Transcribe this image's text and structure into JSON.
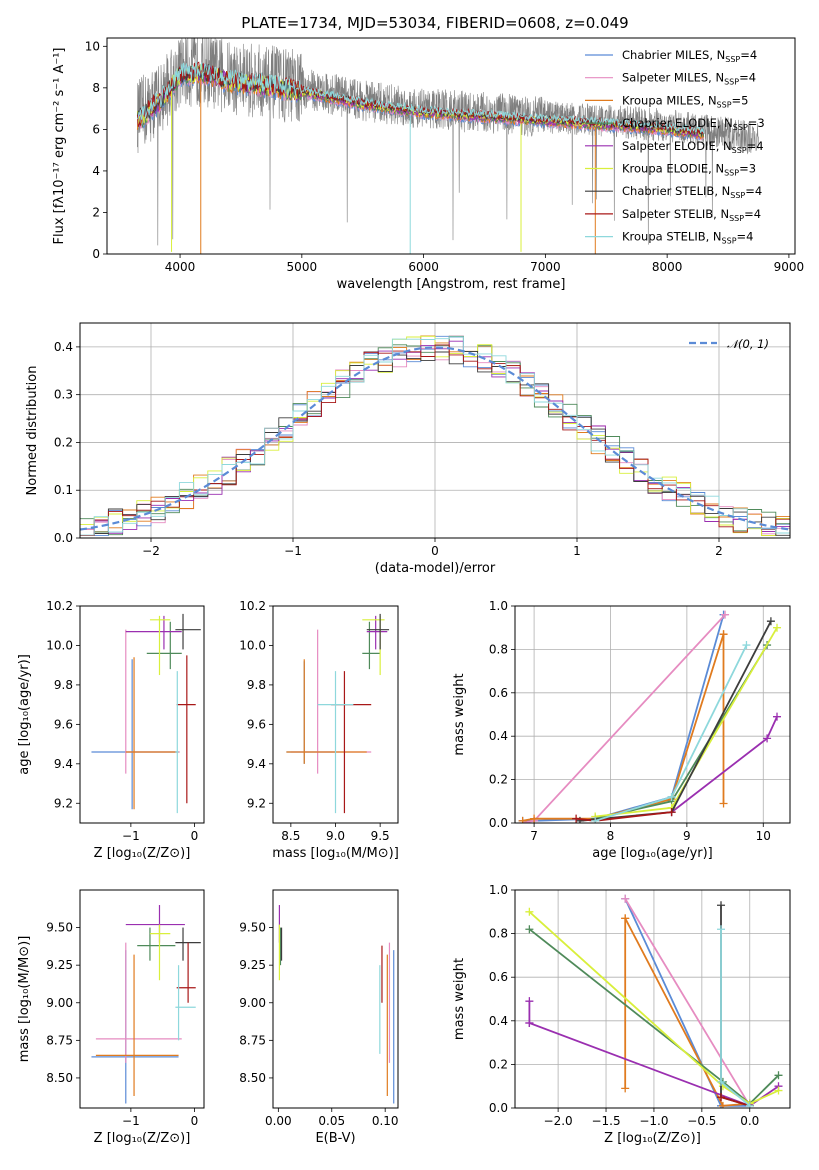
{
  "series_styles": [
    {
      "name": "Chabrier MILES",
      "nssp": "4",
      "color": "#5b8bd6"
    },
    {
      "name": "Salpeter MILES",
      "nssp": "4",
      "color": "#e68cc1"
    },
    {
      "name": "Kroupa MILES",
      "nssp": "5",
      "color": "#e07b1f"
    },
    {
      "name": "Chabrier ELODIE",
      "nssp": "3",
      "color": "#4f8a5a"
    },
    {
      "name": "Salpeter ELODIE",
      "nssp": "4",
      "color": "#9a2fb0"
    },
    {
      "name": "Kroupa ELODIE",
      "nssp": "3",
      "color": "#d9ef3c"
    },
    {
      "name": "Chabrier STELIB",
      "nssp": "4",
      "color": "#3d3d3d"
    },
    {
      "name": "Salpeter STELIB",
      "nssp": "4",
      "color": "#a81818"
    },
    {
      "name": "Kroupa STELIB",
      "nssp": "4",
      "color": "#8ed8dc"
    }
  ],
  "data_color": "#7f7f7f",
  "normal_color": "#5b8bd6",
  "chart_data": [
    {
      "id": "spectrum",
      "type": "line",
      "title": "PLATE=1734, MJD=53034, FIBERID=0608, z=0.049",
      "xlabel": "wavelength [Angstrom, rest frame]",
      "ylabel": "Flux [fλ10⁻¹⁷ erg cm⁻² s⁻¹ A⁻¹]",
      "xlim": [
        3400,
        9050
      ],
      "ylim": [
        0,
        10.4
      ],
      "xticks": [
        4000,
        5000,
        6000,
        7000,
        8000,
        9000
      ],
      "yticks": [
        0,
        2,
        4,
        6,
        8,
        10
      ],
      "legend_loc": "upper right",
      "grid": false,
      "continuum_points": [
        [
          3650,
          6.6
        ],
        [
          3850,
          7.6
        ],
        [
          4000,
          8.8
        ],
        [
          4200,
          8.9
        ],
        [
          4400,
          8.5
        ],
        [
          4700,
          8.3
        ],
        [
          5000,
          8.0
        ],
        [
          5500,
          7.4
        ],
        [
          6000,
          7.0
        ],
        [
          6500,
          6.8
        ],
        [
          7000,
          6.6
        ],
        [
          7500,
          6.4
        ],
        [
          8000,
          6.2
        ],
        [
          8500,
          5.8
        ],
        [
          8750,
          5.5
        ]
      ],
      "model_end_wavelength": 8300,
      "absorption_features": [
        {
          "x": 3930,
          "depth_to": 0.1
        },
        {
          "x": 4170,
          "depth_to": 0.0
        },
        {
          "x": 5890,
          "depth_to": 0.0
        },
        {
          "x": 6800,
          "depth_to": 0.1
        },
        {
          "x": 7410,
          "depth_to": 0.0
        }
      ]
    },
    {
      "id": "residuals",
      "type": "area",
      "xlabel": "(data-model)/error",
      "ylabel": "Normed distribution",
      "xlim": [
        -2.5,
        2.5
      ],
      "ylim": [
        0,
        0.45
      ],
      "xticks": [
        -2,
        -1,
        0,
        1,
        2
      ],
      "yticks": [
        0.0,
        0.1,
        0.2,
        0.3,
        0.4
      ],
      "grid": true,
      "bin_width": 0.1,
      "legend": "𝒩(0, 1)",
      "legend_loc": "upper right"
    },
    {
      "id": "age-vs-Z",
      "type": "scatter",
      "xlabel": "Z [log₁₀(Z/Z⊙)]",
      "ylabel": "age  [log₁₀(age/yr)]",
      "xlim": [
        -1.8,
        0.15
      ],
      "ylim": [
        9.1,
        10.2
      ],
      "xticks": [
        -1,
        0
      ],
      "yticks": [
        9.2,
        9.4,
        9.6,
        9.8,
        10.0,
        10.2
      ],
      "grid": false,
      "points": [
        {
          "s": 0,
          "x": -0.98,
          "y": 9.46,
          "ex": [
            -1.62,
            -0.25
          ],
          "ey": [
            9.17,
            9.93
          ]
        },
        {
          "s": 1,
          "x": -1.08,
          "y": 9.46,
          "ex": [
            -1.08,
            -0.23
          ],
          "ey": [
            9.35,
            10.08
          ]
        },
        {
          "s": 2,
          "x": -0.95,
          "y": 9.46,
          "ex": [
            -1.08,
            -0.25
          ],
          "ey": [
            9.17,
            9.94
          ]
        },
        {
          "s": 3,
          "x": -0.38,
          "y": 9.96,
          "ex": [
            -0.75,
            -0.2
          ],
          "ey": [
            9.88,
            10.12
          ]
        },
        {
          "s": 4,
          "x": -0.48,
          "y": 10.07,
          "ex": [
            -1.08,
            -0.2
          ],
          "ey": [
            9.98,
            10.15
          ]
        },
        {
          "s": 5,
          "x": -0.55,
          "y": 10.13,
          "ex": [
            -0.7,
            -0.38
          ],
          "ey": [
            9.85,
            10.15
          ]
        },
        {
          "s": 6,
          "x": -0.18,
          "y": 10.08,
          "ex": [
            -0.3,
            0.1
          ],
          "ey": [
            9.98,
            10.16
          ]
        },
        {
          "s": 7,
          "x": -0.12,
          "y": 9.7,
          "ex": [
            -0.28,
            0.02
          ],
          "ey": [
            9.2,
            9.95
          ]
        },
        {
          "s": 8,
          "x": -0.27,
          "y": 9.46,
          "ex": [
            -0.3,
            -0.25
          ],
          "ey": [
            9.15,
            9.87
          ]
        }
      ]
    },
    {
      "id": "age-vs-mass",
      "type": "scatter",
      "xlabel": "mass [log₁₀(M/M⊙)]",
      "ylabel": "",
      "xlim": [
        8.3,
        9.7
      ],
      "ylim": [
        9.1,
        10.2
      ],
      "xticks": [
        8.5,
        9.0,
        9.5
      ],
      "yticks": [
        9.2,
        9.4,
        9.6,
        9.8,
        10.0,
        10.2
      ],
      "grid": false,
      "points": [
        {
          "s": 0,
          "x": 8.65,
          "y": 9.46,
          "ex": [
            8.45,
            9.0
          ],
          "ey": [
            9.4,
            9.92
          ]
        },
        {
          "s": 1,
          "x": 8.8,
          "y": 9.46,
          "ex": [
            8.5,
            9.4
          ],
          "ey": [
            9.35,
            10.08
          ]
        },
        {
          "s": 2,
          "x": 8.65,
          "y": 9.46,
          "ex": [
            8.45,
            9.35
          ],
          "ey": [
            9.4,
            9.93
          ]
        },
        {
          "s": 3,
          "x": 9.38,
          "y": 9.96,
          "ex": [
            9.3,
            9.5
          ],
          "ey": [
            9.88,
            10.12
          ]
        },
        {
          "s": 4,
          "x": 9.45,
          "y": 10.07,
          "ex": [
            9.35,
            9.58
          ],
          "ey": [
            9.98,
            10.15
          ]
        },
        {
          "s": 5,
          "x": 9.5,
          "y": 10.13,
          "ex": [
            9.3,
            9.55
          ],
          "ey": [
            9.85,
            10.15
          ]
        },
        {
          "s": 6,
          "x": 9.5,
          "y": 10.08,
          "ex": [
            9.35,
            9.6
          ],
          "ey": [
            9.98,
            10.16
          ]
        },
        {
          "s": 7,
          "x": 9.1,
          "y": 9.7,
          "ex": [
            8.95,
            9.4
          ],
          "ey": [
            9.15,
            9.87
          ]
        },
        {
          "s": 8,
          "x": 9.0,
          "y": 9.7,
          "ex": [
            8.8,
            9.2
          ],
          "ey": [
            9.15,
            9.87
          ]
        }
      ]
    },
    {
      "id": "weight-vs-age",
      "type": "line",
      "xlabel": "age  [log₁₀(age/yr)]",
      "ylabel": "mass weight",
      "xlim": [
        6.75,
        10.35
      ],
      "ylim": [
        0,
        1.0
      ],
      "xticks": [
        7,
        8,
        9,
        10
      ],
      "yticks": [
        0.0,
        0.2,
        0.4,
        0.6,
        0.8,
        1.0
      ],
      "grid": true,
      "series": [
        {
          "s": 0,
          "x": [
            6.85,
            7.0,
            7.8,
            8.8,
            9.48
          ],
          "y": [
            0.01,
            0.01,
            0.02,
            0.12,
            0.96
          ]
        },
        {
          "s": 1,
          "x": [
            6.85,
            7.0,
            9.5
          ],
          "y": [
            0.0,
            0.01,
            0.96
          ]
        },
        {
          "s": 2,
          "x": [
            6.85,
            7.0,
            7.8,
            8.8,
            9.48
          ],
          "y": [
            0.01,
            0.02,
            0.02,
            0.11,
            0.87
          ]
        },
        {
          "s": 2,
          "x": [
            9.48,
            9.48
          ],
          "y": [
            0.87,
            0.09
          ]
        },
        {
          "s": 3,
          "x": [
            7.8,
            8.8,
            10.05
          ],
          "y": [
            0.02,
            0.1,
            0.82
          ]
        },
        {
          "s": 4,
          "x": [
            8.8,
            10.05,
            10.18
          ],
          "y": [
            0.05,
            0.39,
            0.49
          ]
        },
        {
          "s": 5,
          "x": [
            7.8,
            8.8,
            10.18
          ],
          "y": [
            0.03,
            0.07,
            0.9
          ]
        },
        {
          "s": 6,
          "x": [
            7.6,
            8.8,
            10.1
          ],
          "y": [
            0.01,
            0.05,
            0.93
          ]
        },
        {
          "s": 7,
          "x": [
            7.55,
            7.8,
            8.8
          ],
          "y": [
            0.02,
            0.01,
            0.05
          ]
        },
        {
          "s": 8,
          "x": [
            7.8,
            8.8,
            9.78
          ],
          "y": [
            0.01,
            0.12,
            0.82
          ]
        }
      ]
    },
    {
      "id": "mass-vs-Z",
      "type": "scatter",
      "xlabel": "Z [log₁₀(Z/Z⊙)]",
      "ylabel": "mass [log₁₀(M/M⊙)]",
      "xlim": [
        -1.8,
        0.15
      ],
      "ylim": [
        8.3,
        9.75
      ],
      "xticks": [
        -1,
        0
      ],
      "yticks": [
        8.5,
        8.75,
        9.0,
        9.25,
        9.5
      ],
      "grid": false,
      "points": [
        {
          "s": 0,
          "x": -1.08,
          "y": 8.64,
          "ex": [
            -1.62,
            -0.25
          ],
          "ey": [
            8.33,
            9.35
          ]
        },
        {
          "s": 1,
          "x": -1.08,
          "y": 8.76,
          "ex": [
            -1.55,
            -0.2
          ],
          "ey": [
            8.6,
            9.4
          ]
        },
        {
          "s": 2,
          "x": -0.95,
          "y": 8.65,
          "ex": [
            -1.55,
            -0.25
          ],
          "ey": [
            8.38,
            9.32
          ]
        },
        {
          "s": 3,
          "x": -0.7,
          "y": 9.38,
          "ex": [
            -0.9,
            -0.3
          ],
          "ey": [
            9.28,
            9.5
          ]
        },
        {
          "s": 4,
          "x": -0.55,
          "y": 9.52,
          "ex": [
            -1.08,
            -0.15
          ],
          "ey": [
            9.4,
            9.65
          ]
        },
        {
          "s": 5,
          "x": -0.55,
          "y": 9.46,
          "ex": [
            -0.7,
            -0.38
          ],
          "ey": [
            9.15,
            9.52
          ]
        },
        {
          "s": 6,
          "x": -0.18,
          "y": 9.4,
          "ex": [
            -0.3,
            0.1
          ],
          "ey": [
            9.28,
            9.5
          ]
        },
        {
          "s": 7,
          "x": -0.1,
          "y": 9.1,
          "ex": [
            -0.28,
            0.02
          ],
          "ey": [
            9.0,
            9.4
          ]
        },
        {
          "s": 8,
          "x": -0.25,
          "y": 8.97,
          "ex": [
            -0.3,
            0.02
          ],
          "ey": [
            8.75,
            9.25
          ]
        }
      ]
    },
    {
      "id": "mass-vs-EBV",
      "type": "scatter",
      "xlabel": "E(B-V)",
      "ylabel": "",
      "xlim": [
        -0.005,
        0.112
      ],
      "ylim": [
        8.3,
        9.75
      ],
      "xticks": [
        0.0,
        0.05,
        0.1
      ],
      "yticks": [
        8.5,
        8.75,
        9.0,
        9.25,
        9.5
      ],
      "grid": false,
      "points": [
        {
          "s": 0,
          "x": 0.108,
          "y": 8.64,
          "ey": [
            8.33,
            9.35
          ]
        },
        {
          "s": 1,
          "x": 0.104,
          "y": 8.76,
          "ey": [
            8.6,
            9.4
          ]
        },
        {
          "s": 2,
          "x": 0.102,
          "y": 8.65,
          "ey": [
            8.38,
            9.32
          ]
        },
        {
          "s": 3,
          "x": 0.002,
          "y": 9.38,
          "ey": [
            9.25,
            9.5
          ]
        },
        {
          "s": 4,
          "x": 0.001,
          "y": 9.52,
          "ey": [
            9.4,
            9.65
          ]
        },
        {
          "s": 5,
          "x": 0.001,
          "y": 9.46,
          "ey": [
            9.15,
            9.52
          ]
        },
        {
          "s": 6,
          "x": 0.003,
          "y": 9.4,
          "ey": [
            9.28,
            9.5
          ]
        },
        {
          "s": 7,
          "x": 0.097,
          "y": 9.1,
          "ey": [
            9.0,
            9.38
          ]
        },
        {
          "s": 8,
          "x": 0.095,
          "y": 8.97,
          "ey": [
            8.66,
            9.25
          ]
        }
      ]
    },
    {
      "id": "weight-vs-Z",
      "type": "line",
      "xlabel": "Z [log₁₀(Z/Z⊙)]",
      "ylabel": "mass weight",
      "xlim": [
        -2.45,
        0.42
      ],
      "ylim": [
        0,
        1.0
      ],
      "xticks": [
        -2.0,
        -1.5,
        -1.0,
        -0.5,
        0.0
      ],
      "yticks": [
        0.0,
        0.2,
        0.4,
        0.6,
        0.8,
        1.0
      ],
      "grid": true,
      "series": [
        {
          "s": 0,
          "x": [
            -1.3,
            -0.3,
            0.0
          ],
          "y": [
            0.96,
            0.01,
            0.01
          ]
        },
        {
          "s": 1,
          "x": [
            -1.3,
            0.0
          ],
          "y": [
            0.96,
            0.01
          ]
        },
        {
          "s": 2,
          "x": [
            -1.3,
            -1.3,
            -1.3,
            -0.28,
            0.0
          ],
          "y": [
            0.09,
            0.87,
            0.87,
            0.01,
            0.02
          ]
        },
        {
          "s": 3,
          "x": [
            -2.3,
            -0.28,
            0.0,
            0.3
          ],
          "y": [
            0.82,
            0.12,
            0.02,
            0.15
          ]
        },
        {
          "s": 4,
          "x": [
            -2.3,
            -2.3,
            -2.3,
            0.0,
            0.3
          ],
          "y": [
            0.49,
            0.39,
            0.39,
            0.01,
            0.1
          ]
        },
        {
          "s": 5,
          "x": [
            -2.3,
            -0.28,
            0.0,
            0.3
          ],
          "y": [
            0.9,
            0.1,
            0.02,
            0.08
          ]
        },
        {
          "s": 6,
          "x": [
            -0.3,
            -0.3,
            0.0
          ],
          "y": [
            0.93,
            0.05,
            0.01
          ]
        },
        {
          "s": 7,
          "x": [
            -0.3,
            0.0
          ],
          "y": [
            0.05,
            0.01
          ]
        },
        {
          "s": 8,
          "x": [
            -0.3,
            -0.3,
            0.0
          ],
          "y": [
            0.82,
            0.12,
            0.01
          ]
        }
      ]
    }
  ]
}
